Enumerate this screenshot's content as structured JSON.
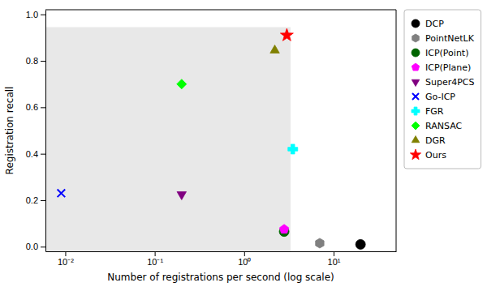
{
  "chart_data": {
    "type": "scatter",
    "xlabel": "Number of registrations per second (log scale)",
    "ylabel": "Registration recall",
    "log": "x",
    "grid": false,
    "legend": "right",
    "xlim": [
      0.006,
      50
    ],
    "ylim": [
      -0.02,
      1.02
    ],
    "xticks": [
      {
        "value": 0.01,
        "label": "10⁻²"
      },
      {
        "value": 0.1,
        "label": "10⁻¹"
      },
      {
        "value": 1,
        "label": "10⁰"
      },
      {
        "value": 10,
        "label": "10¹"
      }
    ],
    "yticks": [
      {
        "value": 0.0,
        "label": "0.0"
      },
      0.2,
      0.4,
      0.6,
      0.8,
      {
        "value": 1.0,
        "label": "1.0"
      }
    ],
    "shaded_region": {
      "x": [
        0.006,
        3.3
      ],
      "y": [
        -0.02,
        0.945
      ],
      "color": "#e8e8e8"
    },
    "series": [
      {
        "name": "DCP",
        "color": "black",
        "marker": "circle",
        "x": [
          20
        ],
        "values": [
          0.01
        ]
      },
      {
        "name": "PointNetLK",
        "color": "gray",
        "marker": "hexagon",
        "x": [
          7
        ],
        "values": [
          0.015
        ]
      },
      {
        "name": "ICP(Point)",
        "color": "#006400",
        "marker": "circle",
        "x": [
          2.8
        ],
        "values": [
          0.065
        ]
      },
      {
        "name": "ICP(Plane)",
        "color": "magenta",
        "marker": "pentagon",
        "x": [
          2.8
        ],
        "values": [
          0.075
        ]
      },
      {
        "name": "Super4PCS",
        "color": "purple",
        "marker": "triangle-down",
        "x": [
          0.2
        ],
        "values": [
          0.225
        ]
      },
      {
        "name": "Go-ICP",
        "color": "blue",
        "marker": "x",
        "x": [
          0.009
        ],
        "values": [
          0.23
        ]
      },
      {
        "name": "FGR",
        "color": "cyan",
        "marker": "plus-filled",
        "x": [
          3.5
        ],
        "values": [
          0.42
        ]
      },
      {
        "name": "RANSAC",
        "color": "lime",
        "marker": "diamond",
        "x": [
          0.2
        ],
        "values": [
          0.7
        ]
      },
      {
        "name": "DGR",
        "color": "#808000",
        "marker": "triangle-up",
        "x": [
          2.2
        ],
        "values": [
          0.845
        ]
      },
      {
        "name": "Ours",
        "color": "red",
        "marker": "star",
        "x": [
          3.0
        ],
        "values": [
          0.91
        ]
      }
    ]
  }
}
